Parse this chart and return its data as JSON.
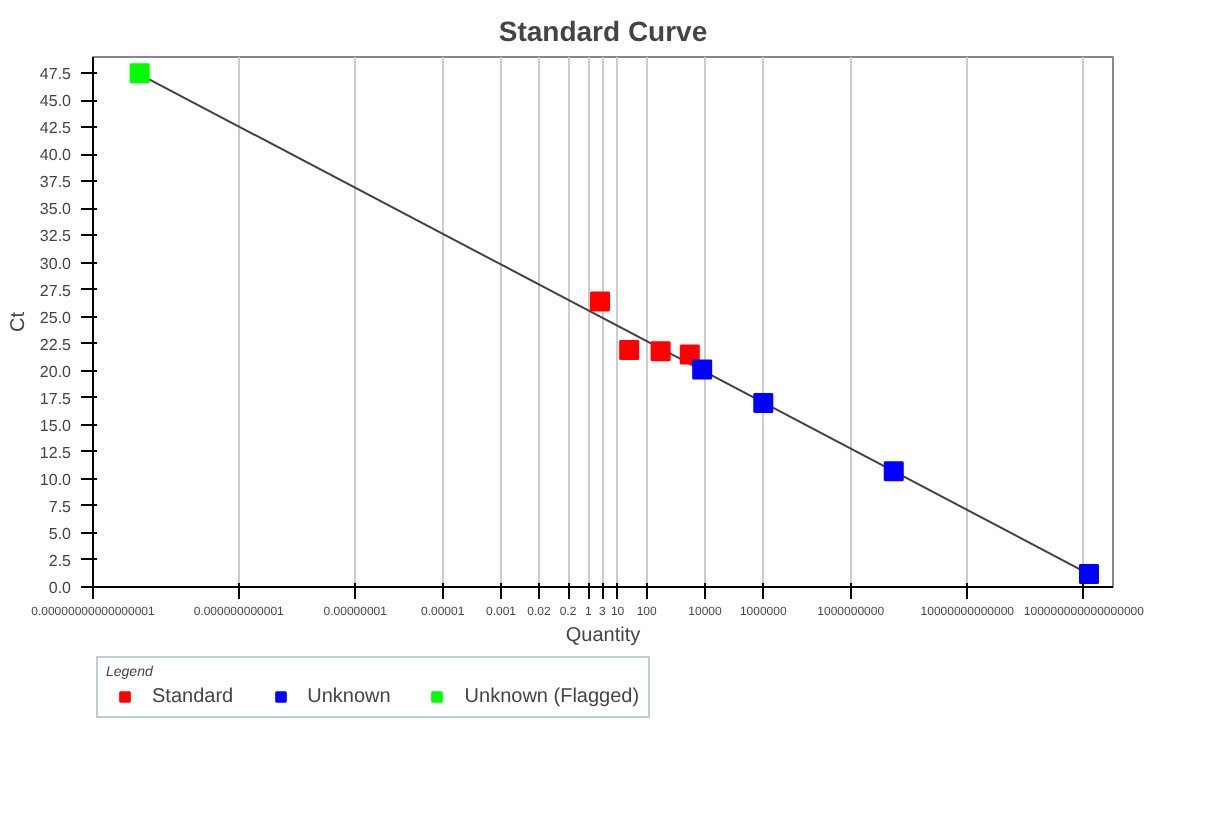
{
  "chart_data": {
    "type": "scatter",
    "title": "Standard Curve",
    "xlabel": "Quantity",
    "ylabel": "Ct",
    "log": "x",
    "grid": "x",
    "marker": "square",
    "legend": "bottom",
    "legend_title": "Legend",
    "xlim": [
      1e-17,
      1e+18
    ],
    "xticks": [
      {
        "value": 1e-17,
        "label": "0.00000000000000001"
      },
      {
        "value": 1e-12,
        "label": "0.000000000001"
      },
      {
        "value": 1e-08,
        "label": "0.00000001"
      },
      {
        "value": 1e-05,
        "label": "0.00001"
      },
      {
        "value": 0.001,
        "label": "0.001"
      },
      {
        "value": 0.02,
        "label": "0.02"
      },
      {
        "value": 0.2,
        "label": "0.2"
      },
      1,
      3,
      10,
      100,
      10000,
      1000000,
      1000000000,
      10000000000000,
      100000000000000000
    ],
    "ylim": [
      0,
      49
    ],
    "yticks": [
      {
        "value": 0,
        "label": "0.0"
      },
      {
        "value": 2.5,
        "label": "2.5"
      },
      {
        "value": 5,
        "label": "5.0"
      },
      {
        "value": 7.5,
        "label": "7.5"
      },
      {
        "value": 10,
        "label": "10.0"
      },
      {
        "value": 12.5,
        "label": "12.5"
      },
      {
        "value": 15,
        "label": "15.0"
      },
      {
        "value": 17.5,
        "label": "17.5"
      },
      {
        "value": 20,
        "label": "20.0"
      },
      {
        "value": 22.5,
        "label": "22.5"
      },
      {
        "value": 25,
        "label": "25.0"
      },
      {
        "value": 27.5,
        "label": "27.5"
      },
      {
        "value": 30,
        "label": "30.0"
      },
      {
        "value": 32.5,
        "label": "32.5"
      },
      {
        "value": 35,
        "label": "35.0"
      },
      {
        "value": 37.5,
        "label": "37.5"
      },
      {
        "value": 40,
        "label": "40.0"
      },
      {
        "value": 42.5,
        "label": "42.5"
      },
      {
        "value": 45,
        "label": "45.0"
      },
      {
        "value": 47.5,
        "label": "47.5"
      }
    ],
    "series": [
      {
        "type": "line",
        "color": "#404040",
        "x": [
          4e-16,
          1.5e+17
        ],
        "values": [
          47.4,
          1.2
        ],
        "marker": "none"
      },
      {
        "name": "Standard",
        "color": "#ff0000",
        "x": [
          2.5,
          25,
          300,
          3000
        ],
        "values": [
          26.4,
          21.9,
          21.8,
          21.5
        ]
      },
      {
        "name": "Unknown",
        "color": "#0000ff",
        "x": [
          8000,
          1000000,
          30000000000,
          150000000000000000
        ],
        "values": [
          20.1,
          17.0,
          10.7,
          1.2
        ]
      },
      {
        "name": "Unknown (Flagged)",
        "color": "#00ff00",
        "x": [
          4e-16
        ],
        "values": [
          47.5
        ]
      }
    ]
  }
}
